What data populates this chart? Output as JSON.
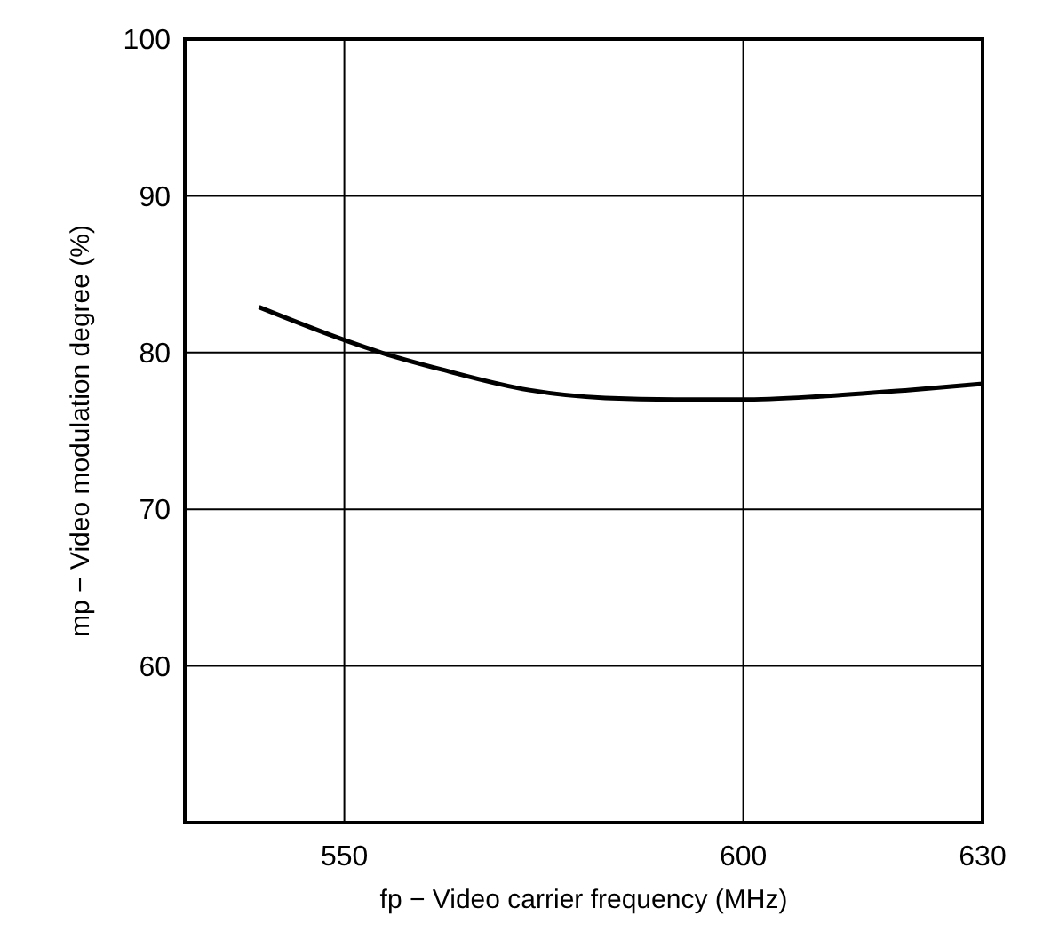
{
  "chart_data": {
    "type": "line",
    "xlabel": "fp − Video carrier frequency    (MHz)",
    "ylabel": "mp − Video modulation degree    (%)",
    "xlim": [
      530,
      630
    ],
    "xticks": [
      550,
      600,
      630
    ],
    "ylim": [
      50,
      100
    ],
    "yticks": [
      60,
      70,
      80,
      90,
      100
    ],
    "grid": true,
    "series": [
      {
        "color": "#000000",
        "x": [
          539.3,
          550,
          554.6,
          562.3,
          573.2,
          582.7,
          591.4,
          599.8,
          609.6,
          620.6,
          630
        ],
        "values": [
          82.9,
          80.8,
          80,
          78.9,
          77.6,
          77.1,
          77.0,
          77.0,
          77.2,
          77.6,
          78.0
        ]
      }
    ]
  }
}
